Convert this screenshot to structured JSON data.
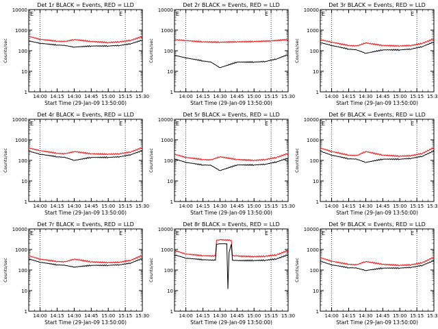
{
  "chart_data": [
    {
      "type": "line",
      "title": "Det 1r BLACK = Events, RED = LLD",
      "xlabel": "Start Time (29-Jan-09 13:50:00)",
      "ylabel": "Counts/sec",
      "x_ticks": [
        "14:00",
        "14:15",
        "14:30",
        "14:45",
        "15:00",
        "15:15",
        "15:30"
      ],
      "y_ticks": [
        "1",
        "10",
        "100",
        "1000",
        "10000"
      ],
      "ylim": [
        1,
        10000
      ],
      "y_scale": "log",
      "corner_mark": "E",
      "series": [
        {
          "color": "#ff0000",
          "x": [
            "13:50",
            "14:00",
            "14:15",
            "14:22",
            "14:30",
            "14:45",
            "15:00",
            "15:10",
            "15:20",
            "15:30"
          ],
          "values": [
            500,
            360,
            290,
            280,
            350,
            280,
            250,
            270,
            320,
            500
          ]
        },
        {
          "color": "#000000",
          "x": [
            "13:50",
            "14:00",
            "14:15",
            "14:22",
            "14:30",
            "14:45",
            "15:00",
            "15:10",
            "15:20",
            "15:30"
          ],
          "values": [
            300,
            230,
            190,
            180,
            150,
            170,
            170,
            180,
            220,
            330
          ]
        }
      ]
    },
    {
      "type": "line",
      "title": "Det 2r BLACK = Events, RED = LLD",
      "xlabel": "Start Time (29-Jan-09 13:50:00)",
      "ylabel": "Counts/sec",
      "x_ticks": [
        "14:00",
        "14:15",
        "14:30",
        "14:45",
        "15:00",
        "15:15",
        "15:30"
      ],
      "y_ticks": [
        "1",
        "10",
        "100",
        "1000",
        "10000"
      ],
      "ylim": [
        1,
        10000
      ],
      "y_scale": "log",
      "corner_mark": "E",
      "series": [
        {
          "color": "#ff0000",
          "x": [
            "13:50",
            "14:00",
            "14:15",
            "14:30",
            "14:45",
            "15:00",
            "15:15",
            "15:30"
          ],
          "values": [
            350,
            310,
            270,
            260,
            270,
            280,
            300,
            350
          ]
        },
        {
          "color": "#000000",
          "x": [
            "13:50",
            "14:00",
            "14:15",
            "14:22",
            "14:30",
            "14:45",
            "15:00",
            "15:10",
            "15:20",
            "15:30"
          ],
          "values": [
            60,
            45,
            32,
            28,
            15,
            28,
            28,
            30,
            40,
            65
          ]
        }
      ]
    },
    {
      "type": "line",
      "title": "Det 3r BLACK = Events, RED = LLD",
      "xlabel": "Start Time (29-Jan-09 13:50:00)",
      "ylabel": "Counts/sec",
      "x_ticks": [
        "14:00",
        "14:15",
        "14:30",
        "14:45",
        "15:00",
        "15:15",
        "15:30"
      ],
      "y_ticks": [
        "1",
        "10",
        "100",
        "1000",
        "10000"
      ],
      "ylim": [
        1,
        10000
      ],
      "y_scale": "log",
      "corner_mark": "E",
      "series": [
        {
          "color": "#ff0000",
          "x": [
            "13:50",
            "14:00",
            "14:15",
            "14:22",
            "14:30",
            "14:45",
            "15:00",
            "15:10",
            "15:20",
            "15:30"
          ],
          "values": [
            350,
            260,
            180,
            170,
            240,
            180,
            170,
            180,
            230,
            380
          ]
        },
        {
          "color": "#000000",
          "x": [
            "13:50",
            "14:00",
            "14:15",
            "14:22",
            "14:30",
            "14:45",
            "15:00",
            "15:10",
            "15:20",
            "15:30"
          ],
          "values": [
            250,
            180,
            120,
            110,
            75,
            110,
            110,
            120,
            160,
            270
          ]
        }
      ]
    },
    {
      "type": "line",
      "title": "Det 4r BLACK = Events, RED = LLD",
      "xlabel": "Start Time (29-Jan-09 13:50:00)",
      "ylabel": "Counts/sec",
      "x_ticks": [
        "14:00",
        "14:15",
        "14:30",
        "14:45",
        "15:00",
        "15:15",
        "15:30"
      ],
      "y_ticks": [
        "1",
        "10",
        "100",
        "1000",
        "10000"
      ],
      "ylim": [
        1,
        10000
      ],
      "y_scale": "log",
      "corner_mark": "E",
      "series": [
        {
          "color": "#ff0000",
          "x": [
            "13:50",
            "14:00",
            "14:15",
            "14:22",
            "14:30",
            "14:45",
            "15:00",
            "15:10",
            "15:20",
            "15:30"
          ],
          "values": [
            400,
            300,
            220,
            210,
            270,
            210,
            200,
            210,
            260,
            420
          ]
        },
        {
          "color": "#000000",
          "x": [
            "13:50",
            "14:00",
            "14:15",
            "14:22",
            "14:30",
            "14:45",
            "15:00",
            "15:10",
            "15:20",
            "15:30"
          ],
          "values": [
            280,
            200,
            150,
            140,
            100,
            140,
            140,
            150,
            190,
            300
          ]
        }
      ]
    },
    {
      "type": "line",
      "title": "Det 5r BLACK = Events, RED = LLD",
      "xlabel": "Start Time (29-Jan-09 13:50:00)",
      "ylabel": "Counts/sec",
      "x_ticks": [
        "14:00",
        "14:15",
        "14:30",
        "14:45",
        "15:00",
        "15:15",
        "15:30"
      ],
      "y_ticks": [
        "1",
        "10",
        "100",
        "1000",
        "10000"
      ],
      "ylim": [
        1,
        10000
      ],
      "y_scale": "log",
      "corner_mark": "E",
      "series": [
        {
          "color": "#ff0000",
          "x": [
            "13:50",
            "14:00",
            "14:15",
            "14:22",
            "14:30",
            "14:45",
            "15:00",
            "15:10",
            "15:20",
            "15:30"
          ],
          "values": [
            200,
            140,
            110,
            105,
            150,
            110,
            100,
            110,
            140,
            220
          ]
        },
        {
          "color": "#000000",
          "x": [
            "13:50",
            "14:00",
            "14:15",
            "14:22",
            "14:30",
            "14:45",
            "15:00",
            "15:10",
            "15:20",
            "15:30"
          ],
          "values": [
            120,
            80,
            60,
            58,
            32,
            60,
            60,
            65,
            85,
            130
          ]
        }
      ]
    },
    {
      "type": "line",
      "title": "Det 6r BLACK = Events, RED = LLD",
      "xlabel": "Start Time (29-Jan-09 13:50:00)",
      "ylabel": "Counts/sec",
      "x_ticks": [
        "14:00",
        "14:15",
        "14:30",
        "14:45",
        "15:00",
        "15:15",
        "15:30"
      ],
      "y_ticks": [
        "1",
        "10",
        "100",
        "1000",
        "10000"
      ],
      "ylim": [
        1,
        10000
      ],
      "y_scale": "log",
      "corner_mark": "E",
      "series": [
        {
          "color": "#ff0000",
          "x": [
            "13:50",
            "14:00",
            "14:15",
            "14:22",
            "14:30",
            "14:45",
            "15:00",
            "15:10",
            "15:20",
            "15:30"
          ],
          "values": [
            400,
            270,
            180,
            170,
            270,
            180,
            160,
            170,
            220,
            420
          ]
        },
        {
          "color": "#000000",
          "x": [
            "13:50",
            "14:00",
            "14:15",
            "14:22",
            "14:30",
            "14:45",
            "15:00",
            "15:10",
            "15:20",
            "15:30"
          ],
          "values": [
            280,
            180,
            120,
            115,
            80,
            115,
            115,
            125,
            160,
            290
          ]
        }
      ]
    },
    {
      "type": "line",
      "title": "Det 7r BLACK = Events, RED = LLD",
      "xlabel": "Start Time (29-Jan-09 13:50:00)",
      "ylabel": "Counts/sec",
      "x_ticks": [
        "14:00",
        "14:15",
        "14:30",
        "14:45",
        "15:00",
        "15:15",
        "15:30"
      ],
      "y_ticks": [
        "1",
        "10",
        "100",
        "1000",
        "10000"
      ],
      "ylim": [
        1,
        10000
      ],
      "y_scale": "log",
      "corner_mark": "E",
      "series": [
        {
          "color": "#ff0000",
          "x": [
            "13:50",
            "14:00",
            "14:15",
            "14:22",
            "14:30",
            "14:45",
            "15:00",
            "15:10",
            "15:20",
            "15:30"
          ],
          "values": [
            500,
            340,
            260,
            250,
            340,
            250,
            230,
            240,
            300,
            520
          ]
        },
        {
          "color": "#000000",
          "x": [
            "13:50",
            "14:00",
            "14:15",
            "14:22",
            "14:30",
            "14:45",
            "15:00",
            "15:10",
            "15:20",
            "15:30"
          ],
          "values": [
            350,
            240,
            180,
            170,
            140,
            170,
            170,
            180,
            220,
            370
          ]
        }
      ]
    },
    {
      "type": "line",
      "title": "Det 8r BLACK = Events, RED = LLD",
      "xlabel": "Start Time (29-Jan-09 13:50:00)",
      "ylabel": "Counts/sec",
      "x_ticks": [
        "14:00",
        "14:15",
        "14:30",
        "14:45",
        "15:00",
        "15:15",
        "15:30"
      ],
      "y_ticks": [
        "1",
        "10",
        "100",
        "1000",
        "10000"
      ],
      "ylim": [
        1,
        10000
      ],
      "y_scale": "log",
      "corner_mark": "E",
      "series": [
        {
          "color": "#ff0000",
          "x": [
            "13:50",
            "14:00",
            "14:15",
            "14:26",
            "14:27",
            "14:30",
            "14:40",
            "14:41",
            "14:45",
            "15:00",
            "15:10",
            "15:20",
            "15:30"
          ],
          "values": [
            900,
            600,
            500,
            480,
            2800,
            3000,
            2800,
            500,
            480,
            450,
            470,
            550,
            900
          ]
        },
        {
          "color": "#000000",
          "x": [
            "13:50",
            "14:00",
            "14:15",
            "14:26",
            "14:27",
            "14:30",
            "14:36",
            "14:37",
            "14:38",
            "14:40",
            "14:41",
            "14:45",
            "15:00",
            "15:10",
            "15:20",
            "15:30"
          ],
          "values": [
            550,
            380,
            320,
            300,
            1800,
            1900,
            1900,
            12,
            700,
            1800,
            300,
            290,
            290,
            300,
            350,
            560
          ]
        }
      ]
    },
    {
      "type": "line",
      "title": "Det 9r BLACK = Events, RED = LLD",
      "xlabel": "Start Time (29-Jan-09 13:50:00)",
      "ylabel": "Counts/sec",
      "x_ticks": [
        "14:00",
        "14:15",
        "14:30",
        "14:45",
        "15:00",
        "15:15",
        "15:30"
      ],
      "y_ticks": [
        "1",
        "10",
        "100",
        "1000",
        "10000"
      ],
      "ylim": [
        1,
        10000
      ],
      "y_scale": "log",
      "corner_mark": "E",
      "series": [
        {
          "color": "#ff0000",
          "x": [
            "13:50",
            "14:00",
            "14:15",
            "14:22",
            "14:30",
            "14:45",
            "15:00",
            "15:10",
            "15:20",
            "15:30"
          ],
          "values": [
            400,
            270,
            190,
            180,
            260,
            190,
            170,
            180,
            230,
            420
          ]
        },
        {
          "color": "#000000",
          "x": [
            "13:50",
            "14:00",
            "14:15",
            "14:22",
            "14:30",
            "14:45",
            "15:00",
            "15:10",
            "15:20",
            "15:30"
          ],
          "values": [
            270,
            180,
            130,
            125,
            95,
            125,
            125,
            135,
            170,
            290
          ]
        }
      ]
    }
  ]
}
